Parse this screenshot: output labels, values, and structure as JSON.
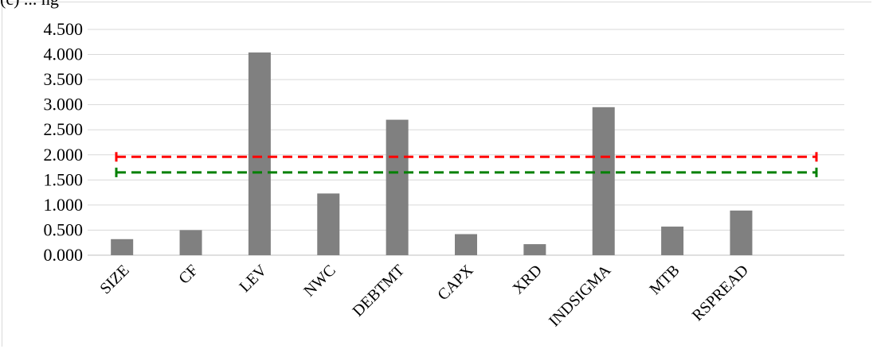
{
  "header_text": "(c) ... ng",
  "chart_data": {
    "type": "bar",
    "categories": [
      "SIZE",
      "CF",
      "LEV",
      "NWC",
      "DEBTMT",
      "CAPX",
      "XRD",
      "INDSIGMA",
      "MTB",
      "RSPREAD"
    ],
    "values": [
      0.32,
      0.5,
      4.04,
      1.23,
      2.7,
      0.42,
      0.22,
      2.95,
      0.57,
      0.89
    ],
    "ylim": [
      0,
      4.5
    ],
    "yticks": [
      "0.000",
      "0.500",
      "1.000",
      "1.500",
      "2.000",
      "2.500",
      "3.000",
      "3.500",
      "4.000",
      "4.500"
    ],
    "reference_lines": [
      {
        "value": 1.96,
        "color": "#ff0000",
        "style": "dashed"
      },
      {
        "value": 1.65,
        "color": "#008000",
        "style": "dashed"
      }
    ],
    "bar_color": "#808080",
    "grid": true,
    "title": "",
    "xlabel": "",
    "ylabel": ""
  }
}
